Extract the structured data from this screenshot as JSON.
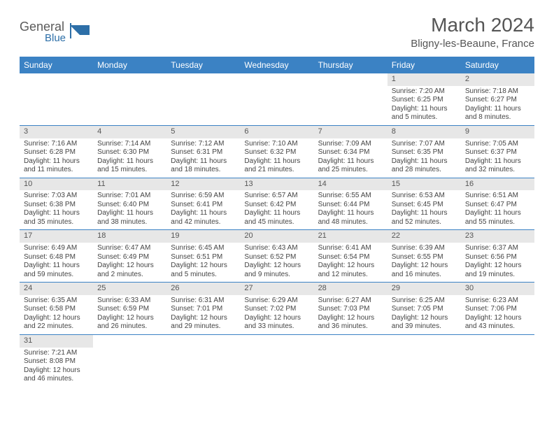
{
  "brand": {
    "general": "General",
    "blue": "Blue"
  },
  "title": "March 2024",
  "location": "Bligny-les-Beaune, France",
  "colors": {
    "header_bg": "#3b82c4",
    "header_fg": "#ffffff",
    "daynum_bg": "#e7e7e7",
    "row_border": "#3b82c4",
    "text": "#444444",
    "title_color": "#555555",
    "logo_blue": "#2d6fa8",
    "logo_text": "#5a5a5a"
  },
  "weekdays": [
    "Sunday",
    "Monday",
    "Tuesday",
    "Wednesday",
    "Thursday",
    "Friday",
    "Saturday"
  ],
  "weeks": [
    [
      null,
      null,
      null,
      null,
      null,
      {
        "num": "1",
        "sunrise": "7:20 AM",
        "sunset": "6:25 PM",
        "daylight": "11 hours and 5 minutes."
      },
      {
        "num": "2",
        "sunrise": "7:18 AM",
        "sunset": "6:27 PM",
        "daylight": "11 hours and 8 minutes."
      }
    ],
    [
      {
        "num": "3",
        "sunrise": "7:16 AM",
        "sunset": "6:28 PM",
        "daylight": "11 hours and 11 minutes."
      },
      {
        "num": "4",
        "sunrise": "7:14 AM",
        "sunset": "6:30 PM",
        "daylight": "11 hours and 15 minutes."
      },
      {
        "num": "5",
        "sunrise": "7:12 AM",
        "sunset": "6:31 PM",
        "daylight": "11 hours and 18 minutes."
      },
      {
        "num": "6",
        "sunrise": "7:10 AM",
        "sunset": "6:32 PM",
        "daylight": "11 hours and 21 minutes."
      },
      {
        "num": "7",
        "sunrise": "7:09 AM",
        "sunset": "6:34 PM",
        "daylight": "11 hours and 25 minutes."
      },
      {
        "num": "8",
        "sunrise": "7:07 AM",
        "sunset": "6:35 PM",
        "daylight": "11 hours and 28 minutes."
      },
      {
        "num": "9",
        "sunrise": "7:05 AM",
        "sunset": "6:37 PM",
        "daylight": "11 hours and 32 minutes."
      }
    ],
    [
      {
        "num": "10",
        "sunrise": "7:03 AM",
        "sunset": "6:38 PM",
        "daylight": "11 hours and 35 minutes."
      },
      {
        "num": "11",
        "sunrise": "7:01 AM",
        "sunset": "6:40 PM",
        "daylight": "11 hours and 38 minutes."
      },
      {
        "num": "12",
        "sunrise": "6:59 AM",
        "sunset": "6:41 PM",
        "daylight": "11 hours and 42 minutes."
      },
      {
        "num": "13",
        "sunrise": "6:57 AM",
        "sunset": "6:42 PM",
        "daylight": "11 hours and 45 minutes."
      },
      {
        "num": "14",
        "sunrise": "6:55 AM",
        "sunset": "6:44 PM",
        "daylight": "11 hours and 48 minutes."
      },
      {
        "num": "15",
        "sunrise": "6:53 AM",
        "sunset": "6:45 PM",
        "daylight": "11 hours and 52 minutes."
      },
      {
        "num": "16",
        "sunrise": "6:51 AM",
        "sunset": "6:47 PM",
        "daylight": "11 hours and 55 minutes."
      }
    ],
    [
      {
        "num": "17",
        "sunrise": "6:49 AM",
        "sunset": "6:48 PM",
        "daylight": "11 hours and 59 minutes."
      },
      {
        "num": "18",
        "sunrise": "6:47 AM",
        "sunset": "6:49 PM",
        "daylight": "12 hours and 2 minutes."
      },
      {
        "num": "19",
        "sunrise": "6:45 AM",
        "sunset": "6:51 PM",
        "daylight": "12 hours and 5 minutes."
      },
      {
        "num": "20",
        "sunrise": "6:43 AM",
        "sunset": "6:52 PM",
        "daylight": "12 hours and 9 minutes."
      },
      {
        "num": "21",
        "sunrise": "6:41 AM",
        "sunset": "6:54 PM",
        "daylight": "12 hours and 12 minutes."
      },
      {
        "num": "22",
        "sunrise": "6:39 AM",
        "sunset": "6:55 PM",
        "daylight": "12 hours and 16 minutes."
      },
      {
        "num": "23",
        "sunrise": "6:37 AM",
        "sunset": "6:56 PM",
        "daylight": "12 hours and 19 minutes."
      }
    ],
    [
      {
        "num": "24",
        "sunrise": "6:35 AM",
        "sunset": "6:58 PM",
        "daylight": "12 hours and 22 minutes."
      },
      {
        "num": "25",
        "sunrise": "6:33 AM",
        "sunset": "6:59 PM",
        "daylight": "12 hours and 26 minutes."
      },
      {
        "num": "26",
        "sunrise": "6:31 AM",
        "sunset": "7:01 PM",
        "daylight": "12 hours and 29 minutes."
      },
      {
        "num": "27",
        "sunrise": "6:29 AM",
        "sunset": "7:02 PM",
        "daylight": "12 hours and 33 minutes."
      },
      {
        "num": "28",
        "sunrise": "6:27 AM",
        "sunset": "7:03 PM",
        "daylight": "12 hours and 36 minutes."
      },
      {
        "num": "29",
        "sunrise": "6:25 AM",
        "sunset": "7:05 PM",
        "daylight": "12 hours and 39 minutes."
      },
      {
        "num": "30",
        "sunrise": "6:23 AM",
        "sunset": "7:06 PM",
        "daylight": "12 hours and 43 minutes."
      }
    ],
    [
      {
        "num": "31",
        "sunrise": "7:21 AM",
        "sunset": "8:08 PM",
        "daylight": "12 hours and 46 minutes."
      },
      null,
      null,
      null,
      null,
      null,
      null
    ]
  ],
  "labels": {
    "sunrise": "Sunrise: ",
    "sunset": "Sunset: ",
    "daylight": "Daylight: "
  }
}
